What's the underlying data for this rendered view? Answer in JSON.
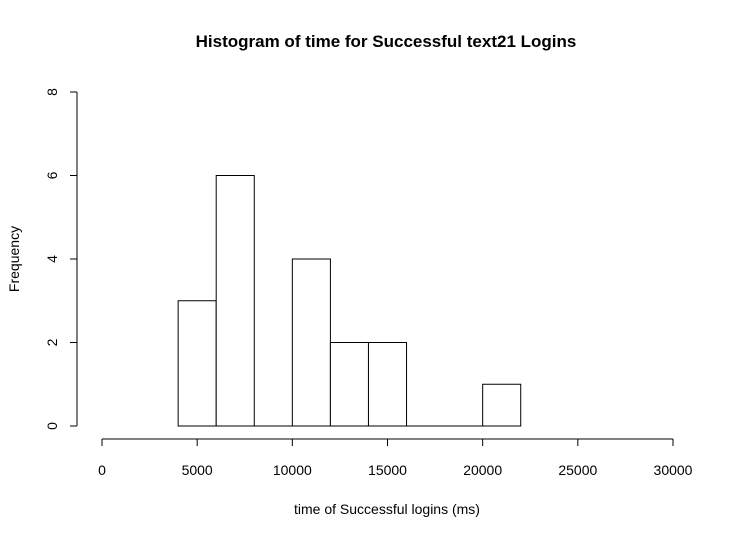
{
  "chart_data": {
    "type": "bar",
    "title": "Histogram of time for Successful text21 Logins",
    "xlabel": "time of Successful logins (ms)",
    "ylabel": "Frequency",
    "xlim": [
      0,
      30000
    ],
    "ylim": [
      0,
      8
    ],
    "x_ticks": [
      0,
      5000,
      10000,
      15000,
      20000,
      25000,
      30000
    ],
    "y_ticks": [
      0,
      2,
      4,
      6,
      8
    ],
    "bins": [
      {
        "start": 4000,
        "end": 6000,
        "count": 3
      },
      {
        "start": 6000,
        "end": 8000,
        "count": 6
      },
      {
        "start": 8000,
        "end": 10000,
        "count": 0
      },
      {
        "start": 10000,
        "end": 12000,
        "count": 4
      },
      {
        "start": 12000,
        "end": 14000,
        "count": 2
      },
      {
        "start": 14000,
        "end": 16000,
        "count": 2
      },
      {
        "start": 16000,
        "end": 18000,
        "count": 0
      },
      {
        "start": 18000,
        "end": 20000,
        "count": 0
      },
      {
        "start": 20000,
        "end": 22000,
        "count": 1
      }
    ],
    "grid": false,
    "legend": "none"
  }
}
